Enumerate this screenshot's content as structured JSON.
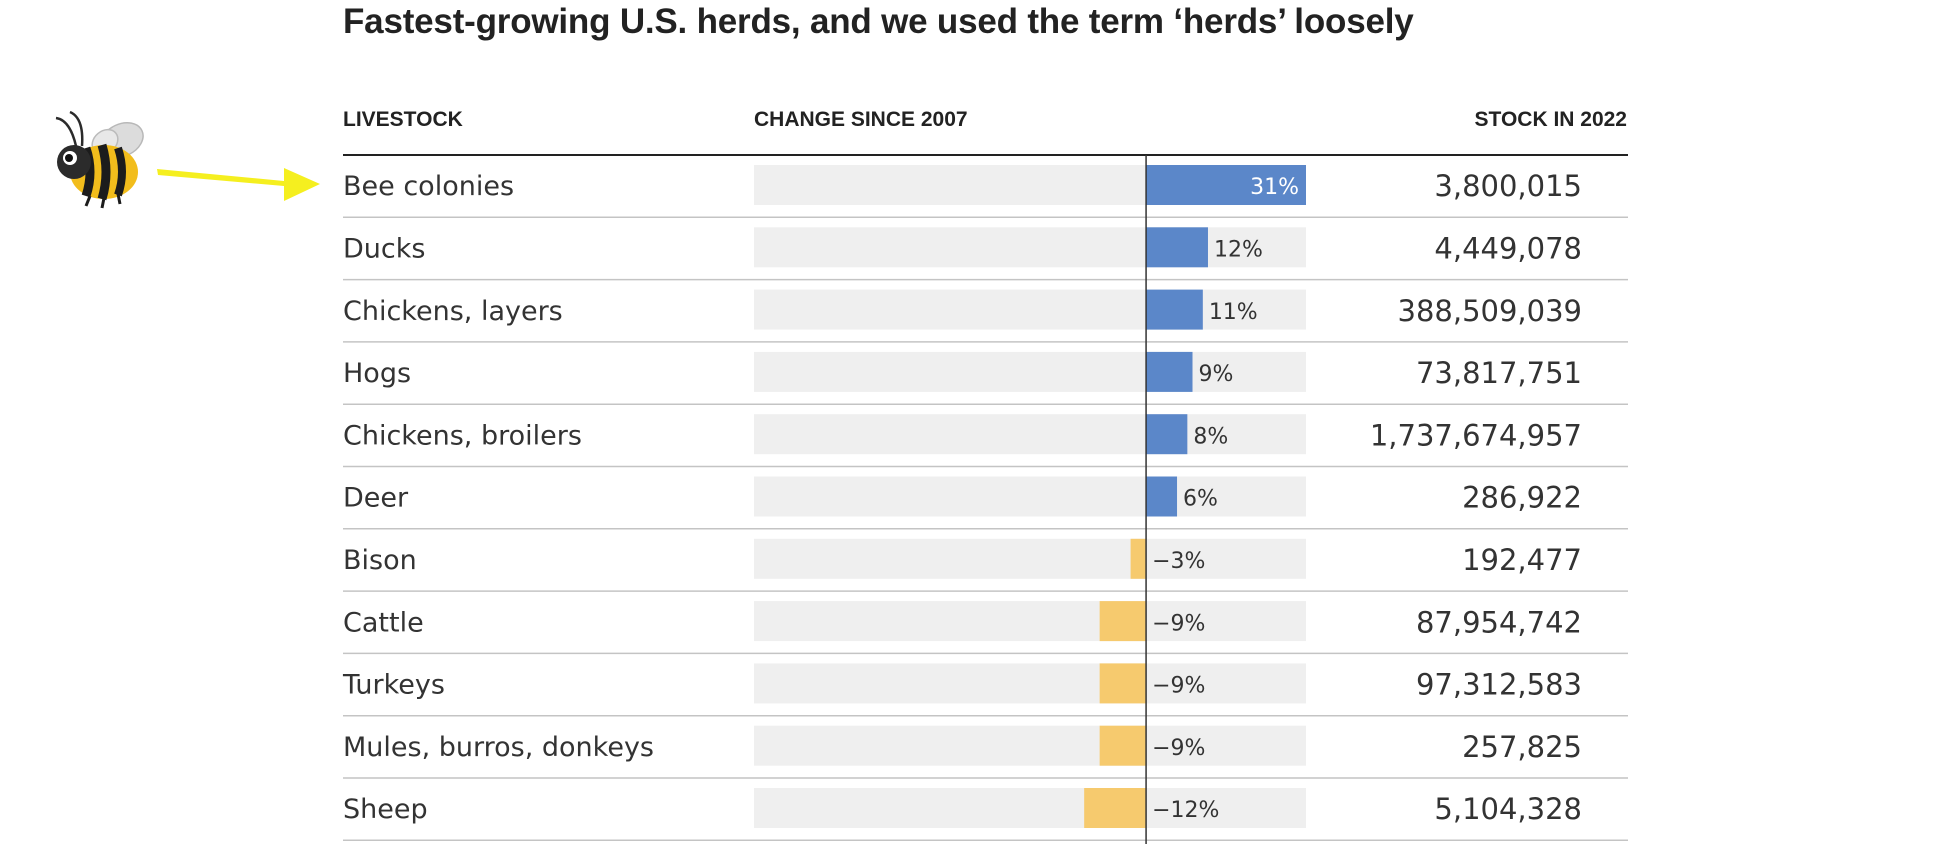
{
  "chart_data": {
    "type": "bar",
    "title": "Fastest-growing U.S. herds, and we used the term ‘herds’ loosely",
    "columns": {
      "livestock": "LIVESTOCK",
      "change": "CHANGE SINCE 2007",
      "stock": "STOCK IN 2022"
    },
    "categories": [
      "Bee colonies",
      "Ducks",
      "Chickens, layers",
      "Hogs",
      "Chickens, broilers",
      "Deer",
      "Bison",
      "Cattle",
      "Turkeys",
      "Mules, burros, donkeys",
      "Sheep"
    ],
    "values": [
      31,
      12,
      11,
      9,
      8,
      6,
      -3,
      -9,
      -9,
      -9,
      -12
    ],
    "value_labels": [
      "31%",
      "12%",
      "11%",
      "9%",
      "8%",
      "6%",
      "−3%",
      "−9%",
      "−9%",
      "−9%",
      "−12%"
    ],
    "stock_labels": [
      "3,800,015",
      "4,449,078",
      "388,509,039",
      "73,817,751",
      "1,737,674,957",
      "286,922",
      "192,477",
      "87,954,742",
      "97,312,583",
      "257,825",
      "5,104,328"
    ],
    "xlim": [
      -76,
      31
    ],
    "colors": {
      "positive": "#5b87c9",
      "negative": "#f6ca6e",
      "track": "#efefef"
    }
  },
  "annotation": {
    "icon": "bee-icon",
    "arrow": "arrow-icon",
    "arrow_color": "#f5ef1f"
  }
}
